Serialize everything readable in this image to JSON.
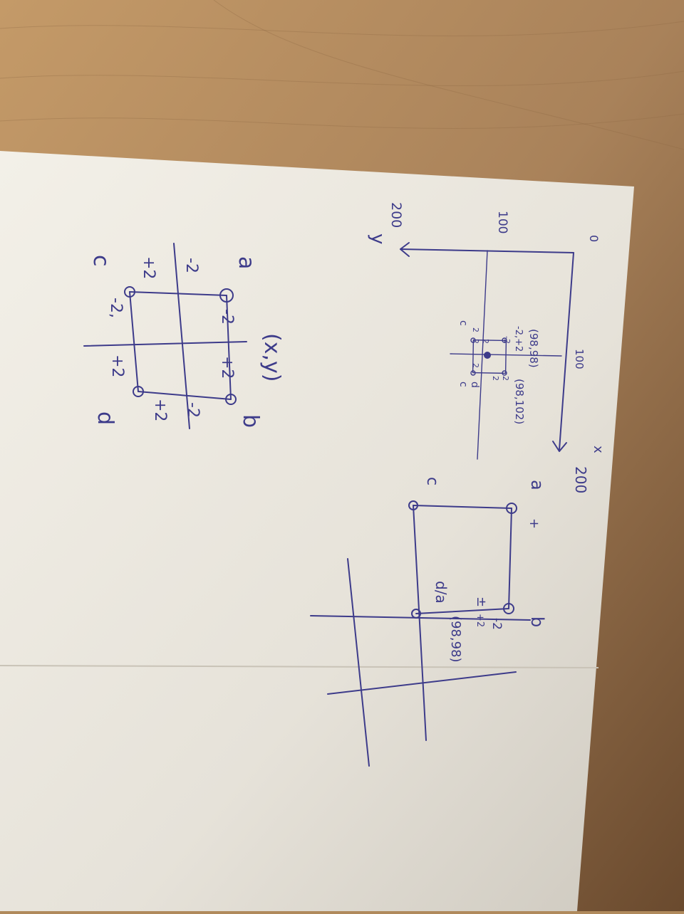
{
  "sketch": {
    "axes": {
      "origin": "0",
      "x_tick": "100",
      "x_end": "200",
      "x_label": "x",
      "y_tick": "100",
      "y_end": "200",
      "y_label": "y"
    },
    "small_square": {
      "top_point": "(98,98)",
      "bottom_point": "(98,102)",
      "corner_a": "a",
      "corner_b": "b",
      "corner_c": "c",
      "corner_d": "d",
      "note_a": "-2,+2",
      "note_b": "b",
      "marks": [
        "-2",
        "2",
        "2",
        "2",
        "2",
        "2",
        "2"
      ]
    },
    "mid_square": {
      "corner_a": "a",
      "corner_b": "b",
      "corner_c": "c",
      "plus": "+",
      "label_da": "d/a",
      "point": "(98,98)",
      "pm": "±",
      "minus_two": "-2",
      "plus_two": "+2"
    },
    "big_square": {
      "xy": "(x,y)",
      "corner_a": "a",
      "corner_b": "b",
      "corner_c": "c",
      "corner_d": "d",
      "top_left": "-2",
      "top_right": "+2",
      "right_top": "-2",
      "right_bottom": "+2",
      "bottom_left": "-2,",
      "bottom_right": "+2",
      "left_top": "-2",
      "left_bottom": "+2"
    }
  }
}
